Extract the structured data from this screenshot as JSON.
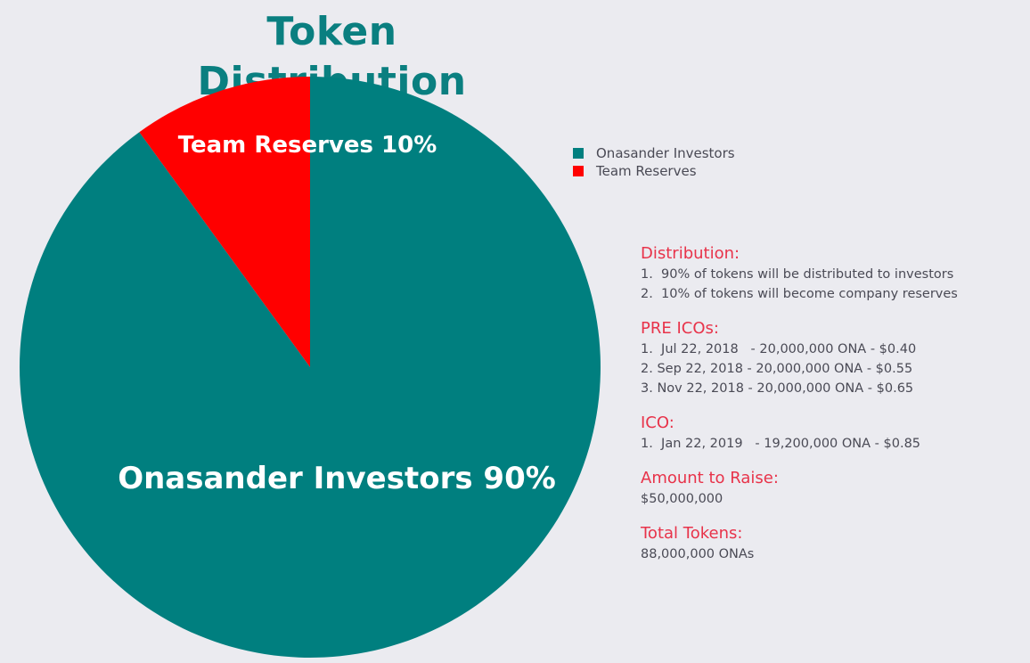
{
  "chart_data": {
    "type": "pie",
    "title": "Token Distribution",
    "slices": [
      {
        "name": "Onasander Investors",
        "label": "Onasander Investors 90%",
        "value": 90,
        "color": "#007f7f"
      },
      {
        "name": "Team Reserves",
        "label": "Team Reserves 10%",
        "value": 10,
        "color": "#ff0000"
      }
    ],
    "legend": {
      "placement": "right",
      "entries": [
        "Onasander Investors",
        "Team Reserves"
      ]
    }
  },
  "info": {
    "distribution": {
      "heading": "Distribution:",
      "lines": [
        "1.  90% of tokens will be distributed to investors",
        "2.  10% of tokens will become company reserves"
      ]
    },
    "pre_icos": {
      "heading": "PRE ICOs:",
      "lines": [
        "1.  Jul 22, 2018   - 20,000,000 ONA - $0.40",
        "2. Sep 22, 2018 - 20,000,000 ONA - $0.55",
        "3. Nov 22, 2018 - 20,000,000 ONA - $0.65"
      ]
    },
    "ico": {
      "heading": "ICO:",
      "lines": [
        "1.  Jan 22, 2019   - 19,200,000 ONA - $0.85"
      ]
    },
    "amount_to_raise": {
      "heading": "Amount to Raise:",
      "value": "$50,000,000"
    },
    "total_tokens": {
      "heading": "Total Tokens:",
      "value": "88,000,000 ONAs"
    }
  },
  "colors": {
    "title": "#0a7f80",
    "heading_accent": "#e8334a",
    "body_text": "#4a4a55",
    "background": "#ebebf0"
  }
}
